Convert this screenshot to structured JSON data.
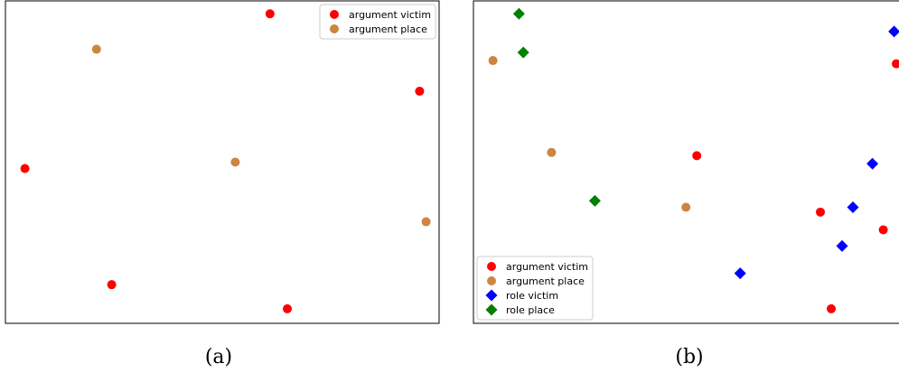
{
  "colors": {
    "argument_victim": "#ff0000",
    "argument_place": "#cd853f",
    "role_victim": "#0000ff",
    "role_place": "#008000"
  },
  "chart_data": [
    {
      "type": "scatter",
      "caption": "(a)",
      "title": "",
      "xlabel": "",
      "ylabel": "",
      "xlim": [
        0,
        1
      ],
      "ylim": [
        0,
        1
      ],
      "ticks": false,
      "grid": false,
      "legend_position": "top-right",
      "series": [
        {
          "name": "argument victim",
          "key": "argument_victim",
          "marker": "circle",
          "points": [
            [
              0.61,
              0.96
            ],
            [
              0.955,
              0.72
            ],
            [
              0.045,
              0.48
            ],
            [
              0.245,
              0.12
            ],
            [
              0.65,
              0.045
            ]
          ]
        },
        {
          "name": "argument place",
          "key": "argument_place",
          "marker": "circle",
          "points": [
            [
              0.21,
              0.85
            ],
            [
              0.53,
              0.5
            ],
            [
              0.97,
              0.315
            ]
          ]
        }
      ]
    },
    {
      "type": "scatter",
      "caption": "(b)",
      "title": "",
      "xlabel": "",
      "ylabel": "",
      "xlim": [
        0,
        1
      ],
      "ylim": [
        0,
        1
      ],
      "ticks": false,
      "grid": false,
      "legend_position": "bottom-left",
      "series": [
        {
          "name": "argument victim",
          "key": "argument_victim",
          "marker": "circle",
          "points": [
            [
              0.975,
              0.805
            ],
            [
              0.515,
              0.52
            ],
            [
              0.8,
              0.345
            ],
            [
              0.945,
              0.29
            ],
            [
              0.825,
              0.045
            ]
          ]
        },
        {
          "name": "argument place",
          "key": "argument_place",
          "marker": "circle",
          "points": [
            [
              0.045,
              0.815
            ],
            [
              0.18,
              0.53
            ],
            [
              0.49,
              0.36
            ]
          ]
        },
        {
          "name": "role victim",
          "key": "role_victim",
          "marker": "diamond",
          "points": [
            [
              0.97,
              0.905
            ],
            [
              0.92,
              0.495
            ],
            [
              0.875,
              0.36
            ],
            [
              0.85,
              0.24
            ],
            [
              0.615,
              0.155
            ]
          ]
        },
        {
          "name": "role place",
          "key": "role_place",
          "marker": "diamond",
          "points": [
            [
              0.105,
              0.96
            ],
            [
              0.115,
              0.84
            ],
            [
              0.28,
              0.38
            ]
          ]
        }
      ]
    }
  ]
}
